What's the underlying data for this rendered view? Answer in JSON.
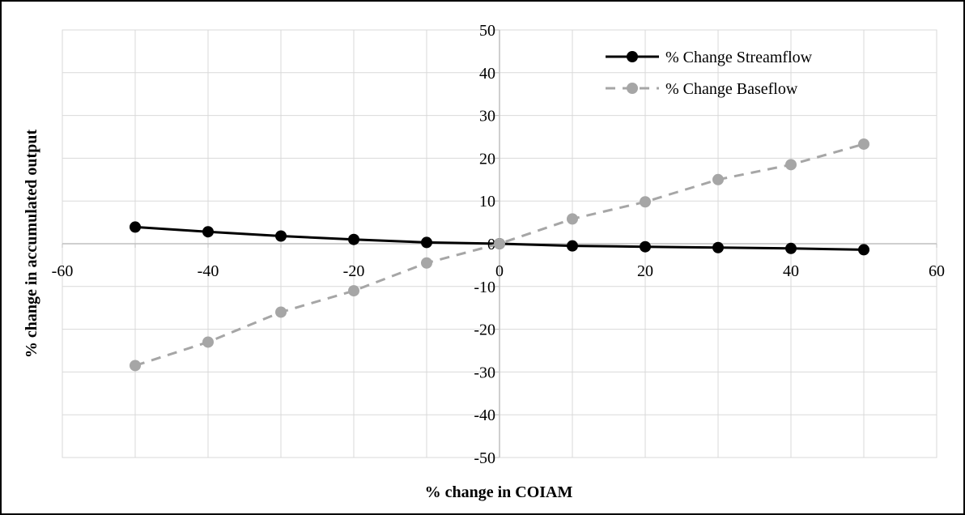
{
  "chart_data": {
    "type": "scatter",
    "title": "",
    "xlabel": "% change in COIAM",
    "ylabel": "% change in accumulated output",
    "xlim": [
      -60,
      60
    ],
    "ylim": [
      -50,
      50
    ],
    "x_ticks": [
      -60,
      -40,
      -20,
      0,
      20,
      40,
      60
    ],
    "y_ticks": [
      -50,
      -40,
      -30,
      -20,
      -10,
      0,
      10,
      20,
      30,
      40,
      50
    ],
    "grid": true,
    "legend_position": "top-right",
    "series": [
      {
        "name": "% Change Streamflow",
        "color": "#000000",
        "line_style": "solid",
        "marker": "circle",
        "x": [
          -50,
          -40,
          -30,
          -20,
          -10,
          0,
          10,
          20,
          30,
          40,
          50
        ],
        "y": [
          3.9,
          2.8,
          1.8,
          1.0,
          0.3,
          0,
          -0.5,
          -0.7,
          -0.9,
          -1.1,
          -1.4
        ]
      },
      {
        "name": "% Change Baseflow",
        "color": "#a6a6a6",
        "line_style": "dashed",
        "marker": "circle",
        "x": [
          -50,
          -40,
          -30,
          -20,
          -10,
          0,
          10,
          20,
          30,
          40,
          50
        ],
        "y": [
          -28.5,
          -23.0,
          -16.0,
          -11.0,
          -4.5,
          0,
          5.8,
          9.8,
          15.0,
          18.5,
          23.3
        ]
      }
    ]
  }
}
